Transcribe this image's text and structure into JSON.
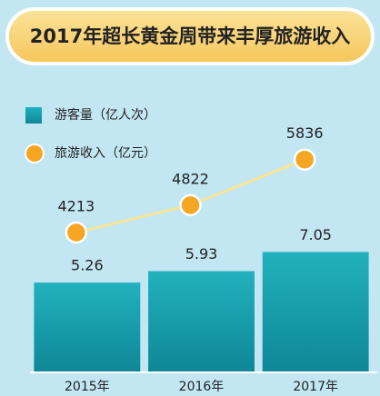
{
  "chart_data": {
    "type": "bar-line",
    "title": "2017年超长黄金周带来丰厚旅游收入",
    "categories": [
      "2015年",
      "2016年",
      "2017年"
    ],
    "ylim": [
      0,
      20
    ],
    "y2lim": [
      1100,
      8700
    ],
    "series": [
      {
        "name": "游客量（亿人次）",
        "type": "bar",
        "color": "#1aa5b3",
        "values": [
          5.26,
          5.93,
          7.05
        ]
      },
      {
        "name": "旅游收入（亿元）",
        "type": "line",
        "axis": "y2",
        "color": "#f5a623",
        "line_color": "#f6e497",
        "values": [
          4213,
          4822,
          5836
        ]
      }
    ]
  }
}
